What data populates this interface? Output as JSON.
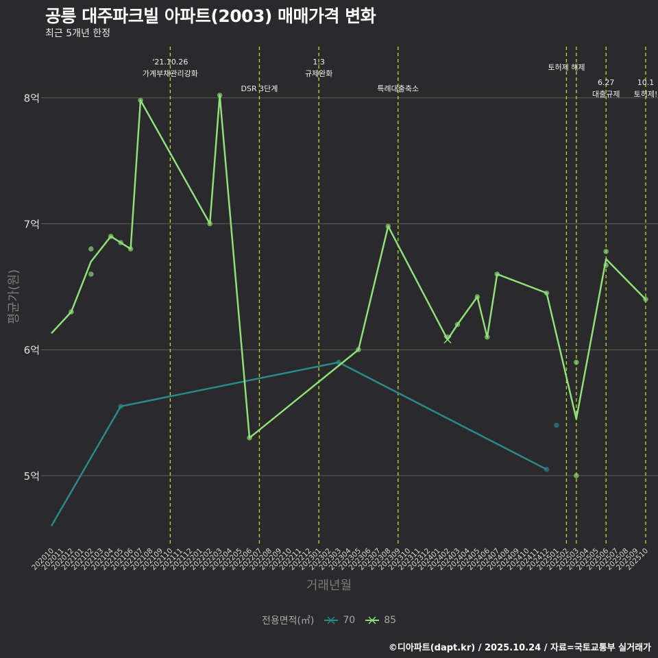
{
  "title": "공릉 대주파크빌 아파트(2003) 매매가격 변화",
  "subtitle": "최근 5개년 한정",
  "caption": "©디아파트(dapt.kr) / 2025.10.24 / 자료=국토교통부 실거래가",
  "colors": {
    "background": "#2a292b",
    "grid": "#5c5c5c",
    "series70": "#2a8a8a",
    "series85": "#8fe07a",
    "event_line": "#c8d62a"
  },
  "chart_data": {
    "type": "line",
    "title": "공릉 대주파크빌 아파트(2003) 매매가격 변화",
    "xlabel": "거래년월",
    "ylabel": "평균가(원)",
    "ylim": [
      4.45,
      8.45
    ],
    "yticks": [
      5,
      6,
      7,
      8
    ],
    "ytick_labels": [
      "5억",
      "6억",
      "7억",
      "8억"
    ],
    "categories": [
      "202010",
      "202011",
      "202012",
      "202101",
      "202102",
      "202103",
      "202104",
      "202105",
      "202106",
      "202107",
      "202108",
      "202109",
      "202110",
      "202111",
      "202112",
      "202201",
      "202202",
      "202203",
      "202204",
      "202205",
      "202206",
      "202207",
      "202208",
      "202209",
      "202210",
      "202211",
      "202212",
      "202301",
      "202302",
      "202303",
      "202304",
      "202305",
      "202306",
      "202307",
      "202308",
      "202309",
      "202310",
      "202311",
      "202312",
      "202401",
      "202402",
      "202403",
      "202404",
      "202405",
      "202406",
      "202407",
      "202408",
      "202409",
      "202410",
      "202411",
      "202412",
      "202501",
      "202502",
      "202503",
      "202504",
      "202505",
      "202506",
      "202507",
      "202508",
      "202509",
      "202510"
    ],
    "legend_title": "전용면적(㎡)",
    "series": [
      {
        "name": "70",
        "color": "#2a8a8a",
        "line": [
          [
            "202010",
            4.6
          ],
          [
            "202105",
            5.55
          ],
          [
            "202303",
            5.9
          ],
          [
            "202412",
            5.05
          ]
        ],
        "points": [
          [
            "202105",
            5.55
          ],
          [
            "202303",
            5.9
          ],
          [
            "202412",
            5.05
          ],
          [
            "202501",
            5.4
          ]
        ]
      },
      {
        "name": "85",
        "color": "#8fe07a",
        "line": [
          [
            "202010",
            6.13
          ],
          [
            "202012",
            6.3
          ],
          [
            "202102",
            6.7
          ],
          [
            "202104",
            6.9
          ],
          [
            "202105",
            6.85
          ],
          [
            "202106",
            6.8
          ],
          [
            "202107",
            7.98
          ],
          [
            "202202",
            7.0
          ],
          [
            "202203",
            8.02
          ],
          [
            "202206",
            5.3
          ],
          [
            "202305",
            6.0
          ],
          [
            "202308",
            6.98
          ],
          [
            "202402",
            6.08
          ],
          [
            "202403",
            6.2
          ],
          [
            "202405",
            6.42
          ],
          [
            "202406",
            6.1
          ],
          [
            "202407",
            6.6
          ],
          [
            "202412",
            6.45
          ],
          [
            "202503",
            5.45
          ],
          [
            "202506",
            6.72
          ],
          [
            "202510",
            6.4
          ]
        ],
        "points": [
          [
            "202012",
            6.3
          ],
          [
            "202102",
            6.8
          ],
          [
            "202102",
            6.6
          ],
          [
            "202104",
            6.9
          ],
          [
            "202105",
            6.85
          ],
          [
            "202106",
            6.8
          ],
          [
            "202107",
            7.98
          ],
          [
            "202202",
            7.0
          ],
          [
            "202203",
            8.02
          ],
          [
            "202206",
            5.3
          ],
          [
            "202305",
            6.0
          ],
          [
            "202308",
            6.98
          ],
          [
            "202402",
            6.1
          ],
          [
            "202403",
            6.2
          ],
          [
            "202405",
            6.42
          ],
          [
            "202406",
            6.1
          ],
          [
            "202407",
            6.6
          ],
          [
            "202412",
            6.45
          ],
          [
            "202503",
            5.9
          ],
          [
            "202503",
            5.0
          ],
          [
            "202506",
            6.78
          ],
          [
            "202506",
            6.67
          ],
          [
            "202510",
            6.4
          ]
        ],
        "cross": [
          [
            "202402",
            6.08
          ]
        ]
      }
    ],
    "events": [
      {
        "at": "202110",
        "pos": 12.0,
        "lines": [
          "'21.10.26",
          "가계부채관리강화"
        ],
        "row": 0
      },
      {
        "at": "202207",
        "pos": 21.0,
        "lines": [
          "DSR 3단계"
        ],
        "row": 2
      },
      {
        "at": "202301",
        "pos": 27.0,
        "lines": [
          "1.3",
          "규제완화"
        ],
        "row": 0
      },
      {
        "at": "202309",
        "pos": 35.0,
        "lines": [
          "특례대출축소"
        ],
        "row": 2
      },
      {
        "at": "202502",
        "pos": 52.0,
        "lines": [
          "토허제 해제"
        ],
        "row": 1
      },
      {
        "at": "202503",
        "pos": 53.0,
        "lines": [],
        "row": 1
      },
      {
        "at": "202506",
        "pos": 56.0,
        "lines": [
          "6.27",
          "대출규제"
        ],
        "row": 3
      },
      {
        "at": "202510",
        "pos": 60.0,
        "lines": [
          "10.1",
          "토허제!"
        ],
        "row": 3
      }
    ]
  }
}
